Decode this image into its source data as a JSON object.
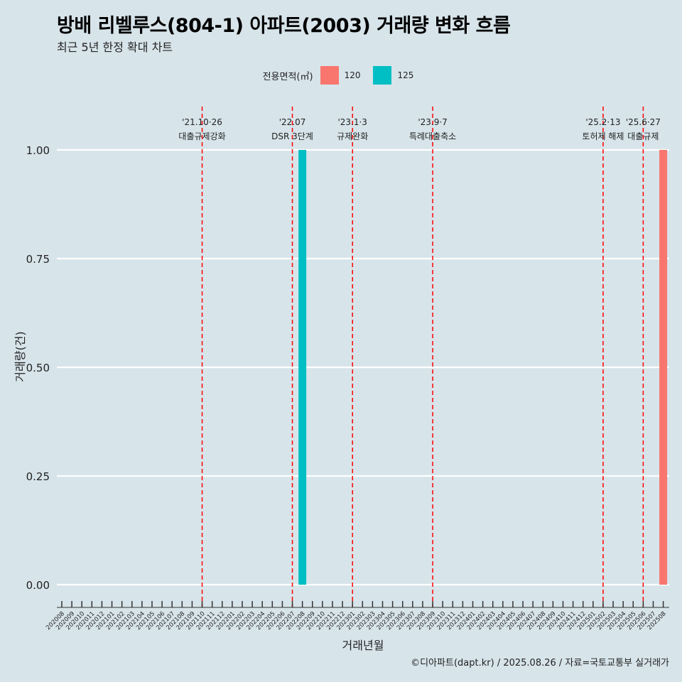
{
  "title": "방배 리벨루스(804-1) 아파트(2003) 거래량 변화 흐름",
  "subtitle": "최근 5년 한정 확대 차트",
  "legend_title": "전용면적(㎡)",
  "caption": "©디아파트(dapt.kr) / 2025.08.26 / 자료=국토교통부 실거래가",
  "colors": {
    "background": "#d7e4ea",
    "s120": "#f8766d",
    "s125": "#00bfc4",
    "event_line": "#ff0000",
    "grid": "#ffffff"
  },
  "chart_data": {
    "type": "bar",
    "xlabel": "거래년월",
    "ylabel": "거래량(건)",
    "ylim": [
      0,
      1
    ],
    "y_ticks": [
      "0.00",
      "0.25",
      "0.50",
      "0.75",
      "1.00"
    ],
    "categories": [
      "202008",
      "202009",
      "202010",
      "202011",
      "202012",
      "202101",
      "202102",
      "202103",
      "202104",
      "202105",
      "202106",
      "202107",
      "202108",
      "202109",
      "202110",
      "202111",
      "202112",
      "202201",
      "202202",
      "202203",
      "202204",
      "202205",
      "202206",
      "202207",
      "202208",
      "202209",
      "202210",
      "202211",
      "202212",
      "202301",
      "202302",
      "202303",
      "202304",
      "202305",
      "202306",
      "202307",
      "202308",
      "202309",
      "202310",
      "202311",
      "202312",
      "202401",
      "202402",
      "202403",
      "202404",
      "202405",
      "202406",
      "202407",
      "202408",
      "202409",
      "202410",
      "202411",
      "202412",
      "202501",
      "202502",
      "202503",
      "202504",
      "202505",
      "202506",
      "202507",
      "202508"
    ],
    "series": [
      {
        "name": "120",
        "color": "#f8766d",
        "points": [
          {
            "x": "202508",
            "y": 1
          }
        ]
      },
      {
        "name": "125",
        "color": "#00bfc4",
        "points": [
          {
            "x": "202208",
            "y": 1
          }
        ]
      }
    ],
    "events": [
      {
        "date": "'21.10·26",
        "label": "대출규제강화",
        "x": "202110"
      },
      {
        "date": "'22.07",
        "label": "DSR 3단계",
        "x": "202207"
      },
      {
        "date": "'23.1·3",
        "label": "규제완화",
        "x": "202301"
      },
      {
        "date": "'23.9·7",
        "label": "특례대출축소",
        "x": "202309"
      },
      {
        "date": "'25.2·13",
        "label": "토허제 해제",
        "x": "202502"
      },
      {
        "date": "'25.6·27",
        "label": "대출규제",
        "x": "202506"
      }
    ]
  }
}
